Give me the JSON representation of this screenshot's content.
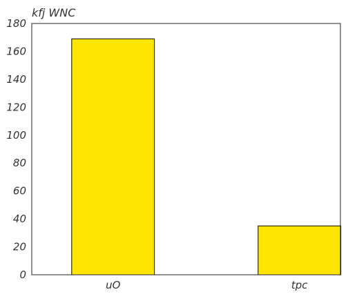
{
  "chart_data": {
    "type": "bar",
    "title": "kfj WNC",
    "xlabel": "",
    "ylabel": "",
    "categories": [
      "uO",
      "tpc"
    ],
    "values": [
      169,
      35
    ],
    "ylim": [
      0,
      180
    ],
    "yticks": [
      "0",
      "20",
      "40",
      "60",
      "80",
      "100",
      "120",
      "140",
      "160",
      "180"
    ],
    "grid": false,
    "bar_color": "#ffe500",
    "bar_edge_color": "#000000"
  }
}
